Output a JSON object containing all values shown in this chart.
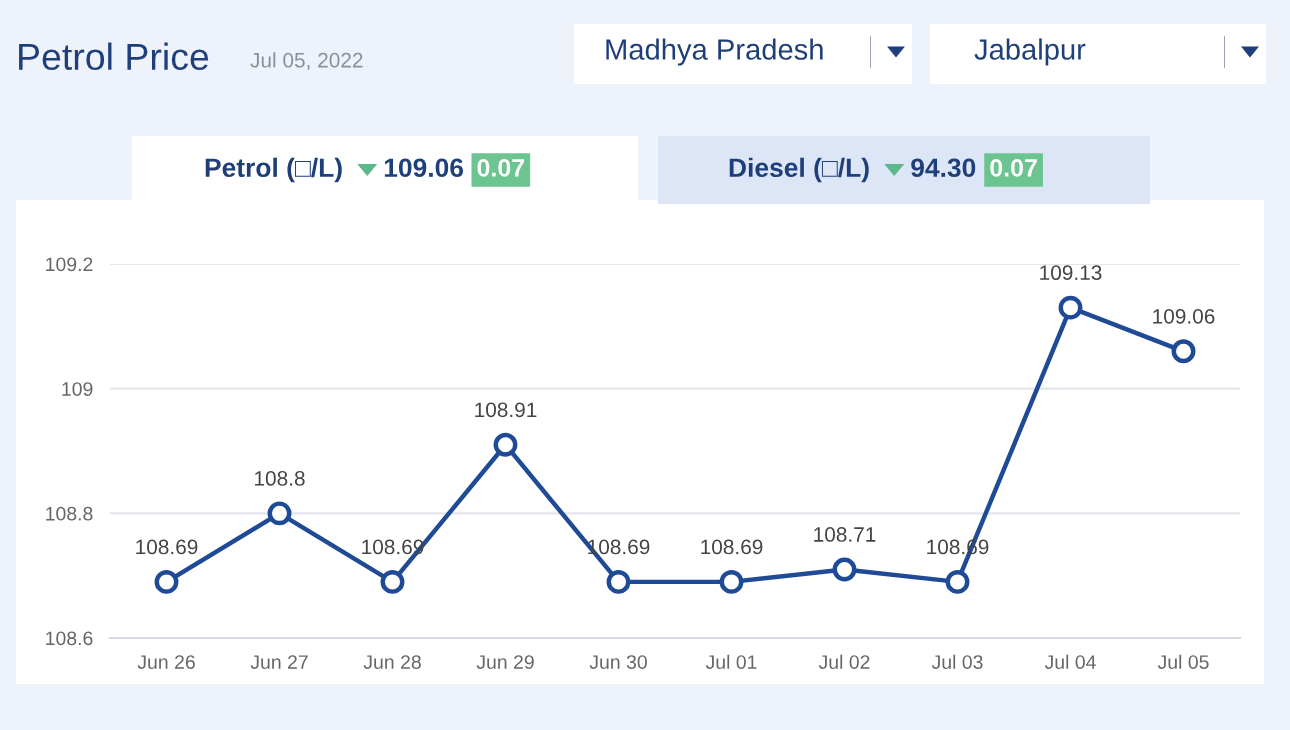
{
  "chart_data": {
    "type": "line",
    "title": "Petrol Price",
    "subtitle": "Jul 05, 2022",
    "annotations": [
      "Madhya Pradesh",
      "Jabalpur",
      "Petrol (□/L)",
      "109.06",
      "0.07",
      "Diesel (□/L)",
      "94.30",
      "0.07"
    ],
    "categories": [
      "Jun 26",
      "Jun 27",
      "Jun 28",
      "Jun 29",
      "Jun 30",
      "Jul 01",
      "Jul 02",
      "Jul 03",
      "Jul 04",
      "Jul 05"
    ],
    "series": [
      {
        "color": "#1f4a96",
        "values": [
          108.69,
          108.8,
          108.69,
          108.91,
          108.69,
          108.69,
          108.71,
          108.69,
          109.13,
          109.06
        ]
      }
    ],
    "ylim": [
      108.6,
      109.2
    ],
    "yticks": [
      108.6,
      108.8,
      109,
      109.2
    ],
    "grid": "y",
    "marker": "circle",
    "line_style": "solid",
    "data_labels": true,
    "legend": false
  }
}
